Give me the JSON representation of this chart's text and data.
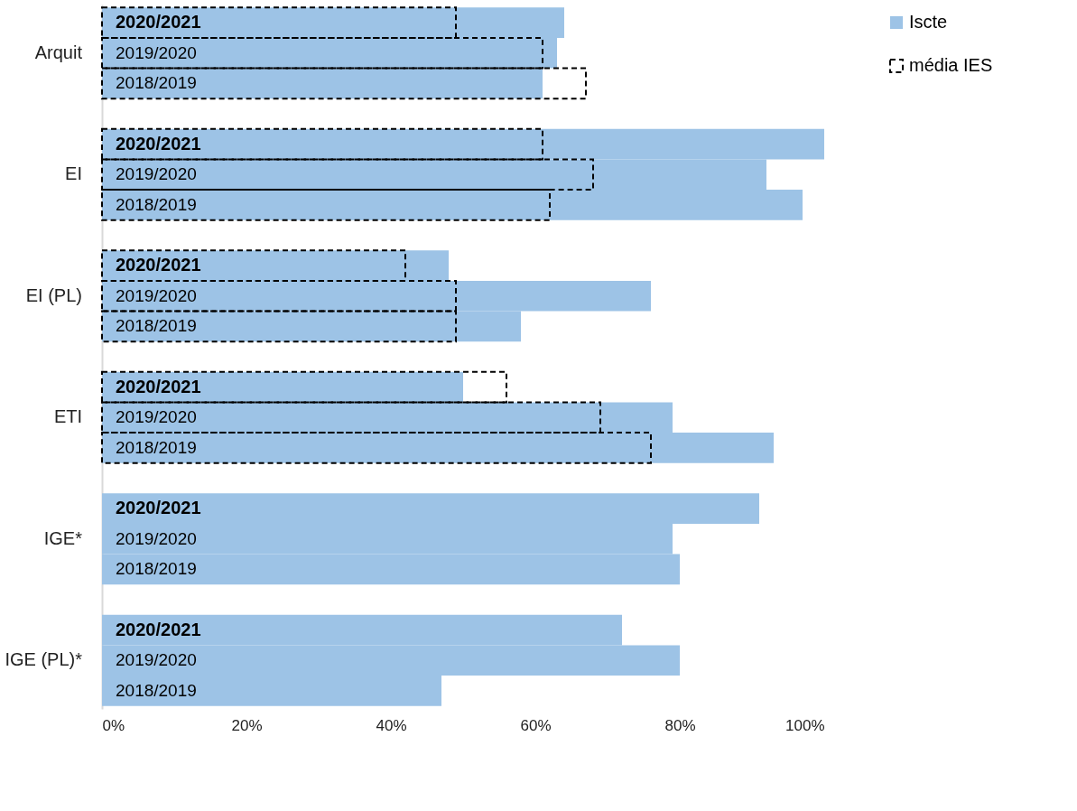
{
  "chart_data": {
    "type": "bar",
    "orientation": "horizontal",
    "categories": [
      "2020/2021",
      "2019/2020",
      "2018/2019",
      "2020/2021",
      "2019/2020",
      "2018/2019",
      "2020/2021",
      "2019/2020",
      "2018/2019",
      "2020/2021",
      "2019/2020",
      "2018/2019",
      "2020/2021",
      "2019/2020",
      "2018/2019",
      "2020/2021",
      "2019/2020",
      "2018/2019"
    ],
    "series": [
      {
        "name": "Iscte",
        "color": "#9dc3e6",
        "values": [
          64,
          63,
          61,
          100,
          92,
          97,
          48,
          76,
          58,
          50,
          79,
          93,
          91,
          79,
          80,
          72,
          80,
          47
        ]
      },
      {
        "name": "média IES",
        "color": "#000000",
        "line_style": "dashed",
        "values": [
          49,
          61,
          67,
          61,
          68,
          62,
          42,
          49,
          49,
          56,
          69,
          76,
          null,
          null,
          null,
          null,
          null,
          null
        ]
      }
    ],
    "annotations": [
      "Arquit",
      "EI",
      "EI (PL)",
      "ETI",
      "IGE*",
      "IGE (PL)*"
    ],
    "xlim": [
      0,
      100
    ],
    "xticks": [
      {
        "value": 0,
        "label": "0%"
      },
      {
        "value": 20,
        "label": "20%"
      },
      {
        "value": 40,
        "label": "40%"
      },
      {
        "value": 60,
        "label": "60%"
      },
      {
        "value": 80,
        "label": "80%"
      },
      {
        "value": 100,
        "label": "100%"
      }
    ],
    "legend": "top right",
    "grid": false
  }
}
